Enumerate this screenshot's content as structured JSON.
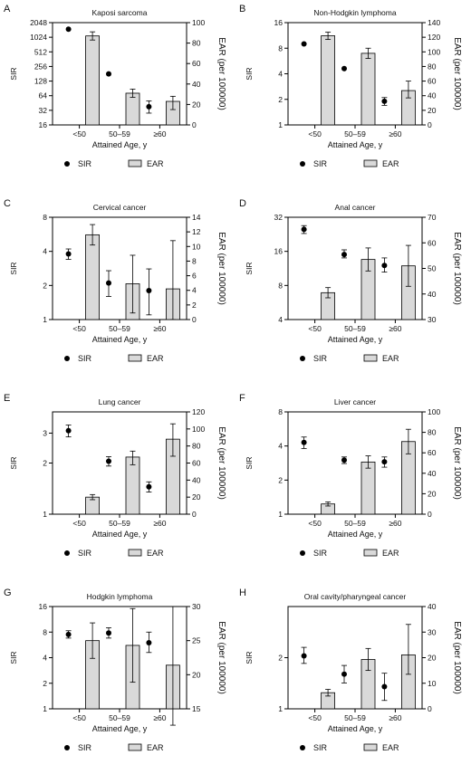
{
  "chart_data": [
    {
      "type": "bar",
      "letter": "A",
      "title": "Kaposi sarcoma",
      "categories": [
        "<50",
        "50–59",
        "≥60"
      ],
      "xlabel": "Attained Age, y",
      "left_axis": {
        "label": "SIR",
        "scale": "log2",
        "ylim": [
          16,
          2048
        ],
        "ticks": [
          "16",
          "32",
          "64",
          "128",
          "256",
          "512",
          "1024",
          "2048"
        ],
        "tick_values": [
          16,
          32,
          64,
          128,
          256,
          512,
          1024,
          2048
        ]
      },
      "right_axis": {
        "label": "EAR (per 100000)",
        "ylim": [
          0,
          100
        ],
        "ticks": [
          "0",
          "20",
          "40",
          "60",
          "80",
          "100"
        ],
        "tick_values": [
          0,
          20,
          40,
          60,
          80,
          100
        ]
      },
      "sir": {
        "name": "SIR",
        "values": [
          1500,
          180,
          38
        ],
        "ci_low": [
          null,
          null,
          28
        ],
        "ci_high": [
          null,
          null,
          50
        ]
      },
      "ear": {
        "name": "EAR",
        "values": [
          87,
          31,
          23
        ],
        "ci_low": [
          83,
          27,
          15
        ],
        "ci_high": [
          91,
          35,
          28
        ]
      },
      "legend": [
        "SIR",
        "EAR"
      ]
    },
    {
      "type": "bar",
      "letter": "B",
      "title": "Non-Hodgkin lymphoma",
      "categories": [
        "<50",
        "50–59",
        "≥60"
      ],
      "xlabel": "Attained Age, y",
      "left_axis": {
        "label": "SIR",
        "scale": "log2",
        "ylim": [
          1,
          16
        ],
        "ticks": [
          "1",
          "2",
          "4",
          "8",
          "16"
        ],
        "tick_values": [
          1,
          2,
          4,
          8,
          16
        ]
      },
      "right_axis": {
        "label": "EAR (per 100000)",
        "ylim": [
          0,
          140
        ],
        "ticks": [
          "0",
          "20",
          "40",
          "60",
          "80",
          "100",
          "120",
          "140"
        ],
        "tick_values": [
          0,
          20,
          40,
          60,
          80,
          100,
          120,
          140
        ]
      },
      "sir": {
        "name": "SIR",
        "values": [
          9,
          4.6,
          1.9
        ],
        "ci_low": [
          null,
          null,
          1.7
        ],
        "ci_high": [
          null,
          null,
          2.1
        ]
      },
      "ear": {
        "name": "EAR",
        "values": [
          122,
          98,
          47
        ],
        "ci_low": [
          117,
          91,
          37
        ],
        "ci_high": [
          127,
          105,
          60
        ]
      },
      "legend": [
        "SIR",
        "EAR"
      ]
    },
    {
      "type": "bar",
      "letter": "C",
      "title": "Cervical cancer",
      "categories": [
        "<50",
        "50–59",
        "≥60"
      ],
      "xlabel": "Attained Age, y",
      "left_axis": {
        "label": "SIR",
        "scale": "log2",
        "ylim": [
          1,
          8
        ],
        "ticks": [
          "1",
          "2",
          "4",
          "8"
        ],
        "tick_values": [
          1,
          2,
          4,
          8
        ]
      },
      "right_axis": {
        "label": "EAR (per 100000)",
        "ylim": [
          0,
          14
        ],
        "ticks": [
          "0",
          "2",
          "4",
          "6",
          "8",
          "10",
          "12",
          "14"
        ],
        "tick_values": [
          0,
          2,
          4,
          6,
          8,
          10,
          12,
          14
        ]
      },
      "sir": {
        "name": "SIR",
        "values": [
          3.8,
          2.1,
          1.8
        ],
        "ci_low": [
          3.4,
          1.6,
          1.1
        ],
        "ci_high": [
          4.2,
          2.7,
          2.8
        ]
      },
      "ear": {
        "name": "EAR",
        "values": [
          11.6,
          4.9,
          4.2
        ],
        "ci_low": [
          10.2,
          0.9,
          0.0
        ],
        "ci_high": [
          13.0,
          8.8,
          10.8
        ]
      },
      "legend": [
        "SIR",
        "EAR"
      ]
    },
    {
      "type": "bar",
      "letter": "D",
      "title": "Anal cancer",
      "categories": [
        "<50",
        "50–59",
        "≥60"
      ],
      "xlabel": "Attained Age, y",
      "left_axis": {
        "label": "SIR",
        "scale": "log2",
        "ylim": [
          4,
          32
        ],
        "ticks": [
          "4",
          "8",
          "16",
          "32"
        ],
        "tick_values": [
          4,
          8,
          16,
          32
        ]
      },
      "right_axis": {
        "label": "EAR (per 100000)",
        "ylim": [
          30,
          70
        ],
        "ticks": [
          "30",
          "40",
          "50",
          "60",
          "70"
        ],
        "tick_values": [
          30,
          40,
          50,
          60,
          70
        ]
      },
      "sir": {
        "name": "SIR",
        "values": [
          25,
          15,
          12
        ],
        "ci_low": [
          23,
          14,
          10.5
        ],
        "ci_high": [
          27,
          16.5,
          14
        ]
      },
      "ear": {
        "name": "EAR",
        "values": [
          40.5,
          53.5,
          51.0
        ],
        "ci_low": [
          38.5,
          49.0,
          43.0
        ],
        "ci_high": [
          42.5,
          58.0,
          59.0
        ]
      },
      "legend": [
        "SIR",
        "EAR"
      ]
    },
    {
      "type": "bar",
      "letter": "E",
      "title": "Lung cancer",
      "categories": [
        "<50",
        "50–59",
        "≥60"
      ],
      "xlabel": "Attained Age, y",
      "left_axis": {
        "label": "SIR",
        "scale": "log2",
        "ylim": [
          1,
          4
        ],
        "ticks": [
          "1",
          "2",
          "3"
        ],
        "tick_values": [
          1,
          2,
          3
        ]
      },
      "right_axis": {
        "label": "EAR (per 100000)",
        "ylim": [
          0,
          120
        ],
        "ticks": [
          "0",
          "20",
          "40",
          "60",
          "80",
          "100",
          "120"
        ],
        "tick_values": [
          0,
          20,
          40,
          60,
          80,
          100,
          120
        ]
      },
      "sir": {
        "name": "SIR",
        "values": [
          3.1,
          2.05,
          1.45
        ],
        "ci_low": [
          2.85,
          1.92,
          1.35
        ],
        "ci_high": [
          3.35,
          2.18,
          1.55
        ]
      },
      "ear": {
        "name": "EAR",
        "values": [
          20,
          67,
          88
        ],
        "ci_low": [
          17,
          58,
          68
        ],
        "ci_high": [
          23,
          74,
          106
        ]
      },
      "legend": [
        "SIR",
        "EAR"
      ]
    },
    {
      "type": "bar",
      "letter": "F",
      "title": "Liver cancer",
      "categories": [
        "<50",
        "50–59",
        "≥60"
      ],
      "xlabel": "Attained Age, y",
      "left_axis": {
        "label": "SIR",
        "scale": "log2",
        "ylim": [
          1,
          8
        ],
        "ticks": [
          "1",
          "2",
          "4",
          "8"
        ],
        "tick_values": [
          1,
          2,
          4,
          8
        ]
      },
      "right_axis": {
        "label": "EAR (per 100000)",
        "ylim": [
          0,
          100
        ],
        "ticks": [
          "0",
          "20",
          "40",
          "60",
          "80",
          "100"
        ],
        "tick_values": [
          0,
          20,
          40,
          60,
          80,
          100
        ]
      },
      "sir": {
        "name": "SIR",
        "values": [
          4.3,
          3.0,
          2.9
        ],
        "ci_low": [
          3.8,
          2.8,
          2.6
        ],
        "ci_high": [
          4.8,
          3.2,
          3.2
        ]
      },
      "ear": {
        "name": "EAR",
        "values": [
          10,
          51,
          71
        ],
        "ci_low": [
          8,
          45,
          59
        ],
        "ci_high": [
          12,
          57,
          83
        ]
      },
      "legend": [
        "SIR",
        "EAR"
      ]
    },
    {
      "type": "bar",
      "letter": "G",
      "title": "Hodgkin lymphoma",
      "categories": [
        "<50",
        "50–59",
        "≥60"
      ],
      "xlabel": "Attained Age, y",
      "left_axis": {
        "label": "SIR",
        "scale": "log2",
        "ylim": [
          1,
          16
        ],
        "ticks": [
          "1",
          "2",
          "4",
          "8",
          "16"
        ],
        "tick_values": [
          1,
          2,
          4,
          8,
          16
        ]
      },
      "right_axis": {
        "label": "EAR (per 100000)",
        "ylim": [
          15,
          30
        ],
        "ticks": [
          "15",
          "20",
          "25",
          "30"
        ],
        "tick_values": [
          15,
          20,
          25,
          30
        ]
      },
      "sir": {
        "name": "SIR",
        "values": [
          7.5,
          7.8,
          6.0
        ],
        "ci_low": [
          6.8,
          6.8,
          4.6
        ],
        "ci_high": [
          8.3,
          9.0,
          8.0
        ]
      },
      "ear": {
        "name": "EAR",
        "values": [
          25.0,
          24.3,
          21.4
        ],
        "ci_low": [
          22.4,
          18.9,
          12.6
        ],
        "ci_high": [
          27.6,
          29.7,
          30.0
        ]
      },
      "legend": [
        "SIR",
        "EAR"
      ]
    },
    {
      "type": "bar",
      "letter": "H",
      "title": "Oral cavity/pharyngeal cancer",
      "categories": [
        "<50",
        "50–59",
        "≥60"
      ],
      "xlabel": "Attained Age, y",
      "left_axis": {
        "label": "SIR",
        "scale": "log2",
        "ylim": [
          1,
          4
        ],
        "ticks": [
          "1",
          "2"
        ],
        "tick_values": [
          1,
          2
        ]
      },
      "right_axis": {
        "label": "EAR (per 100000)",
        "ylim": [
          0,
          40
        ],
        "ticks": [
          "0",
          "10",
          "20",
          "30",
          "40"
        ],
        "tick_values": [
          0,
          10,
          20,
          30,
          40
        ]
      },
      "sir": {
        "name": "SIR",
        "values": [
          2.05,
          1.6,
          1.35
        ],
        "ci_low": [
          1.85,
          1.42,
          1.12
        ],
        "ci_high": [
          2.3,
          1.8,
          1.62
        ]
      },
      "ear": {
        "name": "EAR",
        "values": [
          6.3,
          19.3,
          21.1
        ],
        "ci_low": [
          5.0,
          15.0,
          13.5
        ],
        "ci_high": [
          7.6,
          23.6,
          33.0
        ]
      },
      "legend": [
        "SIR",
        "EAR"
      ]
    }
  ]
}
